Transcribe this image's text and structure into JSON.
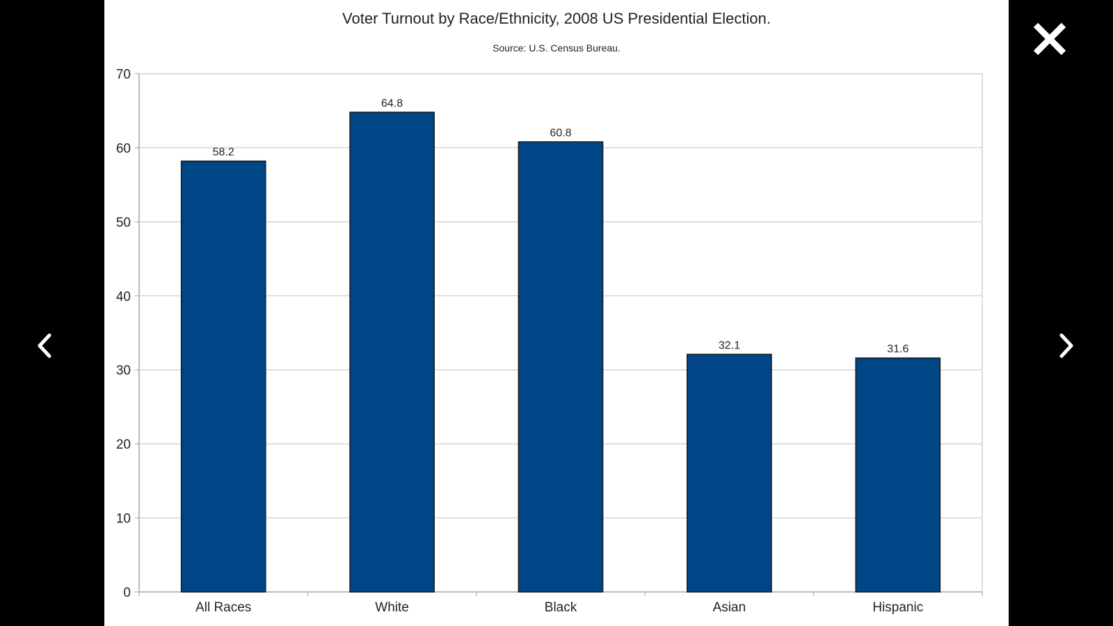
{
  "viewer": {
    "background": "#000000",
    "controls": {
      "close_icon": "close-icon",
      "prev_icon": "chevron-left-icon",
      "next_icon": "chevron-right-icon",
      "icon_color": "#ffffff"
    }
  },
  "chart_data": {
    "type": "bar",
    "title": "Voter Turnout by Race/Ethnicity, 2008 US Presidential Election.",
    "subtitle": "Source: U.S. Census Bureau.",
    "categories": [
      "All Races",
      "White",
      "Black",
      "Asian",
      "Hispanic"
    ],
    "values": [
      58.2,
      64.8,
      60.8,
      32.1,
      31.6
    ],
    "value_labels": [
      "58.2",
      "64.8",
      "60.8",
      "32.1",
      "31.6"
    ],
    "ylim": [
      0,
      70
    ],
    "yticks": [
      "0",
      "10",
      "20",
      "30",
      "40",
      "50",
      "60",
      "70"
    ],
    "grid": true,
    "legend": "none",
    "bar_color": "#004586",
    "xlabel": "",
    "ylabel": ""
  }
}
